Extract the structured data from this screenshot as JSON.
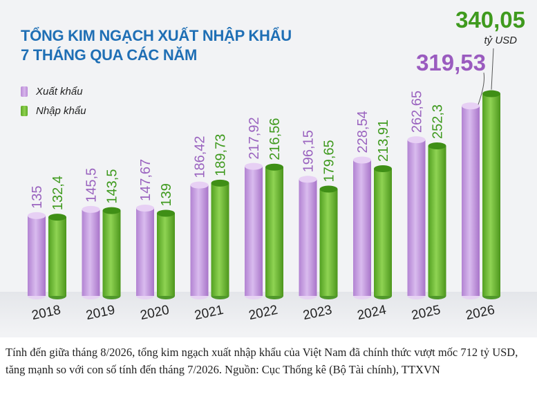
{
  "title": {
    "line1": "TỔNG KIM NGẠCH XUẤT NHẬP KHẨU",
    "line2": "7 THÁNG QUA CÁC NĂM"
  },
  "legend": {
    "export_label": "Xuất khẩu",
    "import_label": "Nhập khẩu"
  },
  "colors": {
    "export": "#c69adf",
    "import": "#6fbe35",
    "export_highlight_text": "#9a5bbf",
    "import_highlight_text": "#3f9a1e",
    "title": "#1f6fb5"
  },
  "chart_data": {
    "type": "bar",
    "categories": [
      "2018",
      "2019",
      "2020",
      "2021",
      "2022",
      "2023",
      "2024",
      "2025",
      "2026"
    ],
    "series": [
      {
        "name": "Xuất khẩu",
        "values": [
          135,
          145.5,
          147.67,
          186.42,
          217.92,
          196.15,
          228.54,
          262.65,
          319.53
        ],
        "labels": [
          "135",
          "145,5",
          "147,67",
          "186,42",
          "217,92",
          "196,15",
          "228,54",
          "262,65",
          "319,53"
        ]
      },
      {
        "name": "Nhập khẩu",
        "values": [
          132.4,
          143.5,
          139,
          189.73,
          216.56,
          179.65,
          213.91,
          252.3,
          340.05
        ],
        "labels": [
          "132,4",
          "143,5",
          "139",
          "189,73",
          "216,56",
          "179,65",
          "213,91",
          "252,3",
          "340,05"
        ]
      }
    ],
    "highlight_unit": "tỷ USD",
    "legend_position": "top-left",
    "grid": false
  },
  "caption": "Tính đến giữa tháng 8/2026, tổng kim ngạch xuất nhập khẩu của Việt Nam đã chính thức vượt mốc 712 tỷ USD, tăng mạnh so với con số tính đến tháng 7/2026. Nguồn: Cục Thống kê (Bộ Tài chính), TTXVN"
}
